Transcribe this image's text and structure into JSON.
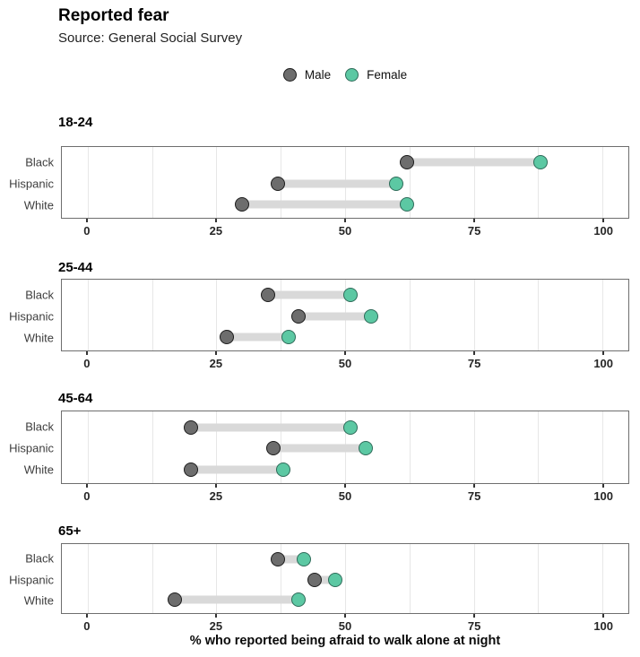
{
  "header": {
    "title": "Reported fear",
    "subtitle": "Source: General Social Survey"
  },
  "legend": {
    "items": [
      {
        "label": "Male",
        "fill": "#6d6d6d",
        "stroke": "#1c1c1c"
      },
      {
        "label": "Female",
        "fill": "#5cc8a3",
        "stroke": "#2e6b59"
      }
    ]
  },
  "colors": {
    "male_dot": "#6d6d6d",
    "female_dot": "#5cc8a3",
    "connector_bar": "#d9d9d9",
    "panel_border": "#6e6e6e",
    "gridline": "#e7e7e7"
  },
  "chart_data": {
    "type": "dumbbell",
    "title": "Reported fear",
    "subtitle": "Source: General Social Survey",
    "xlabel": "% who reported being afraid to walk alone at night",
    "x_ticks": [
      0,
      25,
      50,
      75,
      100
    ],
    "x_range": [
      -5,
      105
    ],
    "minor_grid_step": 12.5,
    "grid": true,
    "legend_position": "top-center",
    "categories": [
      "Black",
      "Hispanic",
      "White"
    ],
    "series_names": [
      "Male",
      "Female"
    ],
    "panels": [
      {
        "facet": "18-24",
        "rows": [
          {
            "category": "Black",
            "male": 62,
            "female": 88
          },
          {
            "category": "Hispanic",
            "male": 37,
            "female": 60
          },
          {
            "category": "White",
            "male": 30,
            "female": 62
          }
        ]
      },
      {
        "facet": "25-44",
        "rows": [
          {
            "category": "Black",
            "male": 35,
            "female": 51
          },
          {
            "category": "Hispanic",
            "male": 41,
            "female": 55
          },
          {
            "category": "White",
            "male": 27,
            "female": 39
          }
        ]
      },
      {
        "facet": "45-64",
        "rows": [
          {
            "category": "Black",
            "male": 20,
            "female": 51
          },
          {
            "category": "Hispanic",
            "male": 36,
            "female": 54
          },
          {
            "category": "White",
            "male": 20,
            "female": 38
          }
        ]
      },
      {
        "facet": "65+",
        "rows": [
          {
            "category": "Black",
            "male": 37,
            "female": 42
          },
          {
            "category": "Hispanic",
            "male": 44,
            "female": 48
          },
          {
            "category": "White",
            "male": 17,
            "female": 41
          }
        ]
      }
    ]
  }
}
